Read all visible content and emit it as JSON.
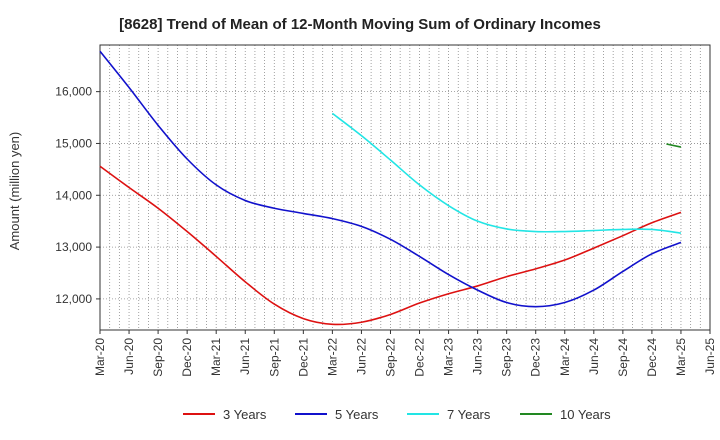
{
  "chart_data": {
    "type": "line",
    "title": "[8628]  Trend of Mean of 12-Month Moving Sum of Ordinary Incomes",
    "xlabel": "",
    "ylabel": "Amount (million yen)",
    "ylim": [
      11400,
      16900
    ],
    "yticks": [
      12000,
      13000,
      14000,
      15000,
      16000
    ],
    "ytick_labels": [
      "12,000",
      "13,000",
      "14,000",
      "15,000",
      "16,000"
    ],
    "grid": true,
    "legend_position": "bottom",
    "categories": [
      "Mar-20",
      "Jun-20",
      "Sep-20",
      "Dec-20",
      "Mar-21",
      "Jun-21",
      "Sep-21",
      "Dec-21",
      "Mar-22",
      "Jun-22",
      "Sep-22",
      "Dec-22",
      "Mar-23",
      "Jun-23",
      "Sep-23",
      "Dec-23",
      "Mar-24",
      "Jun-24",
      "Sep-24",
      "Dec-24",
      "Mar-25",
      "Jun-25"
    ],
    "series": [
      {
        "name": "3 Years",
        "color": "#dd1111",
        "values": [
          14560,
          14150,
          13750,
          13300,
          12820,
          12330,
          11900,
          11620,
          11510,
          11550,
          11700,
          11920,
          12100,
          12250,
          12430,
          12580,
          12750,
          12980,
          13220,
          13470,
          13670,
          null
        ]
      },
      {
        "name": "5 Years",
        "color": "#1111cc",
        "values": [
          16780,
          16080,
          15350,
          14700,
          14200,
          13900,
          13750,
          13650,
          13550,
          13400,
          13150,
          12820,
          12470,
          12170,
          11930,
          11850,
          11930,
          12170,
          12530,
          12870,
          13090,
          null
        ]
      },
      {
        "name": "7 Years",
        "color": "#22e5e5",
        "values": [
          null,
          null,
          null,
          null,
          null,
          null,
          null,
          null,
          15580,
          15150,
          14680,
          14200,
          13800,
          13500,
          13350,
          13300,
          13300,
          13320,
          13340,
          13340,
          13270,
          null
        ]
      },
      {
        "name": "10 Years",
        "color": "#228822",
        "values": [
          null,
          null,
          null,
          null,
          null,
          null,
          null,
          null,
          null,
          null,
          null,
          null,
          null,
          null,
          null,
          null,
          null,
          null,
          null,
          null,
          14930,
          null
        ],
        "segment_start": 14990
      }
    ]
  }
}
